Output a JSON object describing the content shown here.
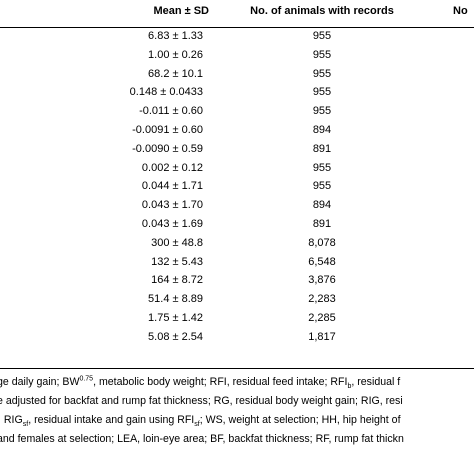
{
  "header": {
    "mean_sd": "Mean ± SD",
    "n_records": "No. of animals with records",
    "third_col_partial": "No"
  },
  "rows": [
    {
      "mean": "6.83 ± 1.33",
      "n": "955"
    },
    {
      "mean": "1.00 ± 0.26",
      "n": "955"
    },
    {
      "mean": "68.2 ± 10.1",
      "n": "955"
    },
    {
      "mean": "0.148 ± 0.0433",
      "n": "955"
    },
    {
      "mean": "-0.011 ± 0.60",
      "n": "955"
    },
    {
      "mean": "-0.0091 ± 0.60",
      "n": "894"
    },
    {
      "mean": "-0.0090 ± 0.59",
      "n": "891"
    },
    {
      "mean": "0.002 ± 0.12",
      "n": "955"
    },
    {
      "mean": "0.044 ± 1.71",
      "n": "955"
    },
    {
      "mean": "0.043 ± 1.70",
      "n": "894"
    },
    {
      "mean": "0.043 ± 1.69",
      "n": "891"
    },
    {
      "mean": "300 ± 48.8",
      "n": "8,078"
    },
    {
      "mean": "132 ± 5.43",
      "n": "6,548"
    },
    {
      "mean": "164 ± 8.72",
      "n": "3,876"
    },
    {
      "mean": "51.4 ± 8.89",
      "n": "2,283"
    },
    {
      "mean": "1.75 ± 1.42",
      "n": "2,285"
    },
    {
      "mean": "5.08 ± 2.54",
      "n": "1,817"
    }
  ],
  "notes": {
    "line1_a": "ge daily gain; BW",
    "line1_sup": "0.75",
    "line1_b": ", metabolic body weight; RFI, residual feed intake; RFI",
    "line1_sub": "b",
    "line1_c": ", residual f",
    "line2": "e adjusted for backfat and rump fat thickness; RG, residual body weight gain; RIG, resi",
    "line3_a": "; RIG",
    "line3_sub": "sf",
    "line3_b": ", residual intake and gain using RFI",
    "line3_sub2": "sf",
    "line3_c": "; WS, weight at selection; HH, hip height of",
    "line4": "and females at selection; LEA, loin-eye area; BF, backfat thickness; RF, rump fat thickn"
  }
}
